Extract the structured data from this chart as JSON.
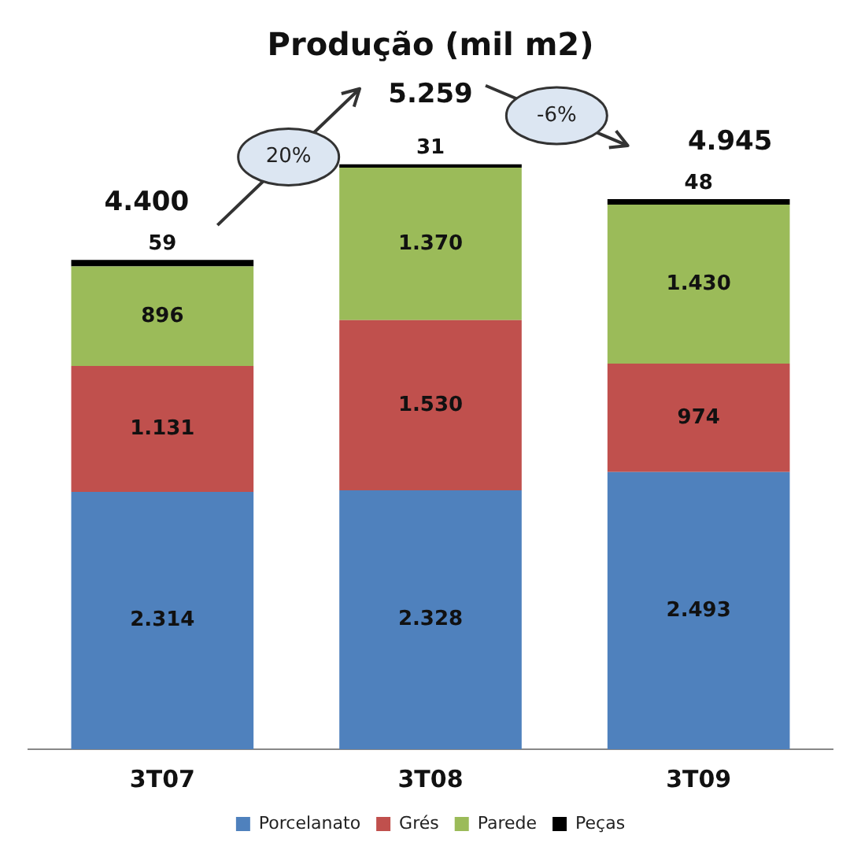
{
  "chart_data": {
    "type": "bar",
    "title": "Produção (mil m2)",
    "categories": [
      "3T07",
      "3T08",
      "3T09"
    ],
    "stacked": true,
    "legend": "bottom",
    "grid": false,
    "tick_labels": "x",
    "series": [
      {
        "name": "Porcelanato",
        "color": "#4f81bd",
        "values": [
          2314,
          2328,
          2493
        ],
        "value_labels": [
          "2.314",
          "2.328",
          "2.493"
        ]
      },
      {
        "name": "Grés",
        "color": "#c0504d",
        "values": [
          1131,
          1530,
          974
        ],
        "value_labels": [
          "1.131",
          "1.530",
          "974"
        ]
      },
      {
        "name": "Parede",
        "color": "#9bbb59",
        "values": [
          896,
          1370,
          1430
        ],
        "value_labels": [
          "896",
          "1.370",
          "1.430"
        ]
      },
      {
        "name": "Peças",
        "color": "#000000",
        "values": [
          59,
          31,
          48
        ],
        "value_labels": [
          "59",
          "31",
          "48"
        ]
      }
    ],
    "totals": [
      "4.400",
      "5.259",
      "4.945"
    ],
    "annotations": [
      "20%",
      "-6%"
    ]
  }
}
